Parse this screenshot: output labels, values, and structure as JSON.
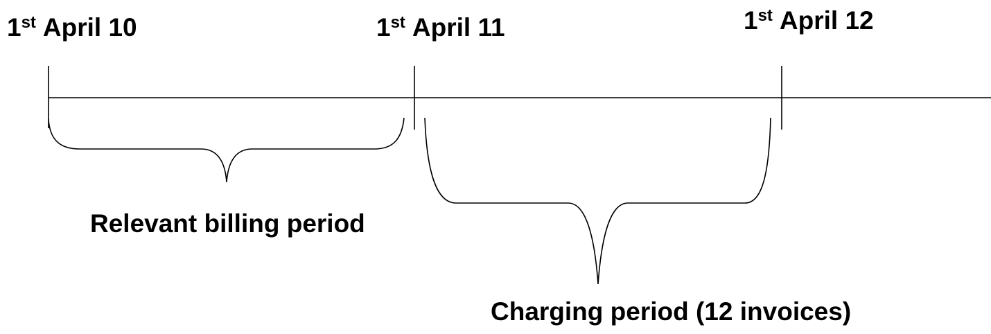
{
  "dates": [
    {
      "day": "1",
      "ordinal": "st",
      "month_year": "April 10"
    },
    {
      "day": "1",
      "ordinal": "st",
      "month_year": "April 11"
    },
    {
      "day": "1",
      "ordinal": "st",
      "month_year": "April 12"
    }
  ],
  "periods": [
    {
      "label": "Relevant billing period"
    },
    {
      "label": "Charging period (12 invoices)"
    }
  ]
}
